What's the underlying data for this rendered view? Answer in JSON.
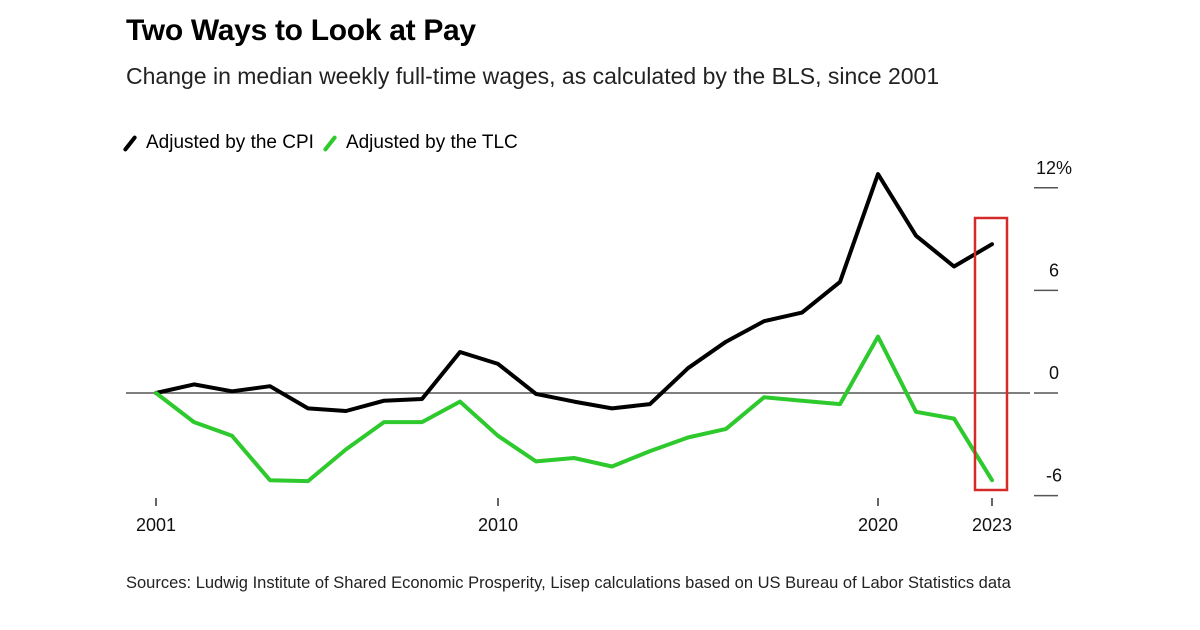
{
  "chart_data": {
    "type": "line",
    "title": "Two Ways to Look at Pay",
    "subtitle": "Change in median weekly full-time wages, as calculated by the BLS, since 2001",
    "xlabel": "",
    "ylabel": "",
    "x": [
      2001,
      2002,
      2003,
      2004,
      2005,
      2006,
      2007,
      2008,
      2009,
      2010,
      2011,
      2012,
      2013,
      2014,
      2015,
      2016,
      2017,
      2018,
      2019,
      2020,
      2021,
      2022,
      2023
    ],
    "series": [
      {
        "name": "Adjusted by the CPI",
        "color": "#000000",
        "values": [
          0,
          0.5,
          0.1,
          0.4,
          -0.9,
          -1.05,
          -0.45,
          -0.35,
          2.4,
          1.7,
          -0.05,
          -0.5,
          -0.9,
          -0.65,
          1.45,
          3.0,
          4.2,
          4.7,
          6.5,
          12.8,
          9.2,
          7.4,
          8.7
        ]
      },
      {
        "name": "Adjusted by the TLC",
        "color": "#2dc92d",
        "values": [
          0,
          -1.7,
          -2.5,
          -5.1,
          -5.15,
          -3.3,
          -1.7,
          -1.7,
          -0.5,
          -2.5,
          -4.0,
          -3.8,
          -4.3,
          -3.4,
          -2.6,
          -2.1,
          -0.25,
          -0.45,
          -0.65,
          3.3,
          -1.1,
          -1.5,
          -5.1
        ]
      }
    ],
    "xlim": [
      2001,
      2023
    ],
    "ylim": [
      -6,
      12
    ],
    "x_ticks": [
      2001,
      2010,
      2020,
      2023
    ],
    "x_tick_labels": [
      "2001",
      "2010",
      "2020",
      "2023"
    ],
    "y_ticks": [
      12,
      6,
      0,
      -6
    ],
    "y_tick_labels": [
      "12%",
      "6",
      "0",
      "-6"
    ],
    "y_axis_side": "right",
    "zero_line": true,
    "grid": false,
    "legend_position": "top-left",
    "annotations": [
      {
        "type": "highlight-box",
        "target_x": 2023,
        "color": "#d42a2a",
        "description": "red rectangle highlighting the 2023 values"
      }
    ],
    "source": "Sources: Ludwig Institute of Shared Economic Prosperity, Lisep calculations based on US Bureau of Labor Statistics data"
  }
}
